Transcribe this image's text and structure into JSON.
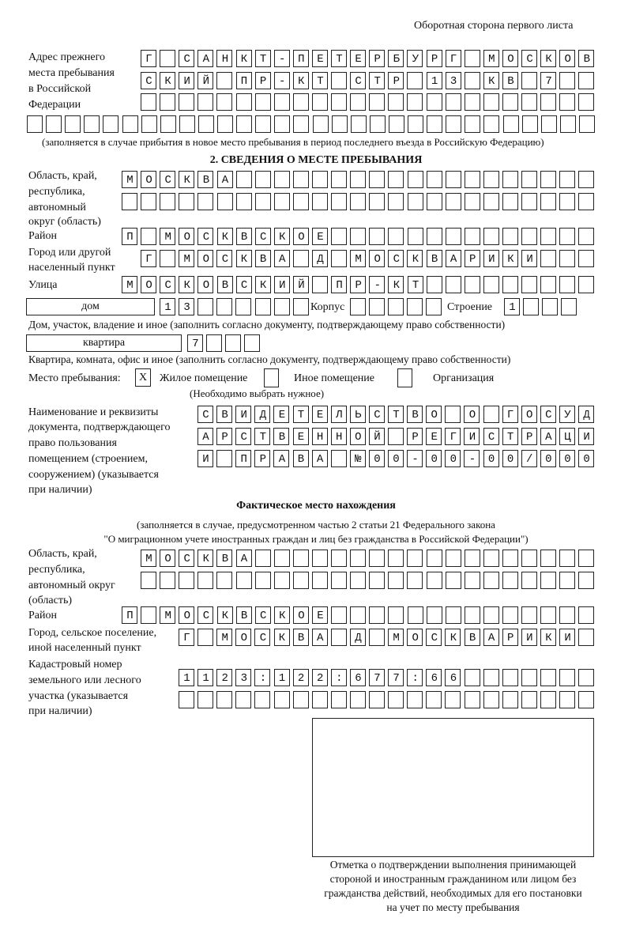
{
  "header": "Оборотная сторона первого листа",
  "prev_address": {
    "label": [
      "Адрес прежнего",
      "места пребывания",
      "в Российской",
      "Федерации"
    ],
    "rows": [
      "Г САНКТ-ПЕТЕРБУРГ МОСКОВ",
      "СКИЙ ПР-КТ СТР 13 КВ 7  ",
      "                        ",
      "                              "
    ],
    "note": "(заполняется в случае прибытия в новое место пребывания в период последнего въезда в Российскую Федерацию)"
  },
  "section2": {
    "title": "2. СВЕДЕНИЯ О МЕСТЕ ПРЕБЫВАНИЯ",
    "region_label": [
      "Область, край,",
      "республика,",
      "автономный",
      "округ (область)"
    ],
    "region_rows": [
      "МОСКВА                   ",
      "                         "
    ],
    "district_label": "Район",
    "district_row": "П МОСКВСКОЕ              ",
    "city_label": [
      "Город или другой",
      "населенный пункт"
    ],
    "city_row": "Г МОСКВА Д МОСКВАРИКИ   ",
    "street_label": "Улица",
    "street_row": "МОСКОВСКИЙ ПР-КТ         ",
    "house_type": "дом",
    "house_row": "13      ",
    "building_label": "Корпус",
    "building_row": "     ",
    "structure_label": "Строение",
    "structure_row": "1   ",
    "house_note": "Дом, участок, владение и иное (заполнить согласно документу, подтверждающему право собственности)",
    "flat_type": "квартира",
    "flat_row": "7   ",
    "flat_note": "Квартира, комната, офис и иное (заполнить согласно документу, подтверждающему право собственности)",
    "stay_label": "Место пребывания:",
    "options": [
      {
        "label": "Жилое помещение",
        "checked": true,
        "mark": "X"
      },
      {
        "label": "Иное помещение",
        "checked": false,
        "mark": ""
      },
      {
        "label": "Организация",
        "checked": false,
        "mark": ""
      }
    ],
    "choose_note": "(Необходимо выбрать нужное)",
    "doc_label": [
      "Наименование и реквизиты",
      "документа, подтверждающего",
      "право пользования",
      "помещением (строением,",
      "сооружением) (указывается",
      "при наличии)"
    ],
    "doc_rows": [
      "СВИДЕТЕЛЬСТВО О ГОСУД",
      "АРСТВЕННОЙ РЕГИСТРАЦИ",
      "И ПРАВА №00-00-00/000"
    ]
  },
  "actual": {
    "title": "Фактическое место нахождения",
    "note1": "(заполняется в случае, предусмотренном частью 2 статьи 21 Федерального закона",
    "note2": "\"О миграционном учете иностранных граждан и лиц без гражданства в Российской Федерации\")",
    "region_label": [
      "Область, край,",
      "республика,",
      "автономный округ",
      "(область)"
    ],
    "region_rows": [
      "МОСКВА                  ",
      "                        "
    ],
    "district_label": "Район",
    "district_row": "П МОСКВСКОЕ              ",
    "city_label": [
      "Город, сельское поселение,",
      "иной населенный пункт"
    ],
    "city_row": "Г МОСКВА Д МОСКВАРИКИ ",
    "cadastral_label": [
      "Кадастровый номер",
      "земельного или лесного",
      "участка (указывается",
      "при наличии)"
    ],
    "cadastral_rows": [
      "1123:122:677:66       ",
      "                      "
    ]
  },
  "confirmation": {
    "lines": [
      "Отметка о подтверждении выполнения принимающей",
      "стороной и иностранным гражданином или лицом без",
      "гражданства действий, необходимых для его постановки",
      "на учет по месту пребывания"
    ]
  }
}
